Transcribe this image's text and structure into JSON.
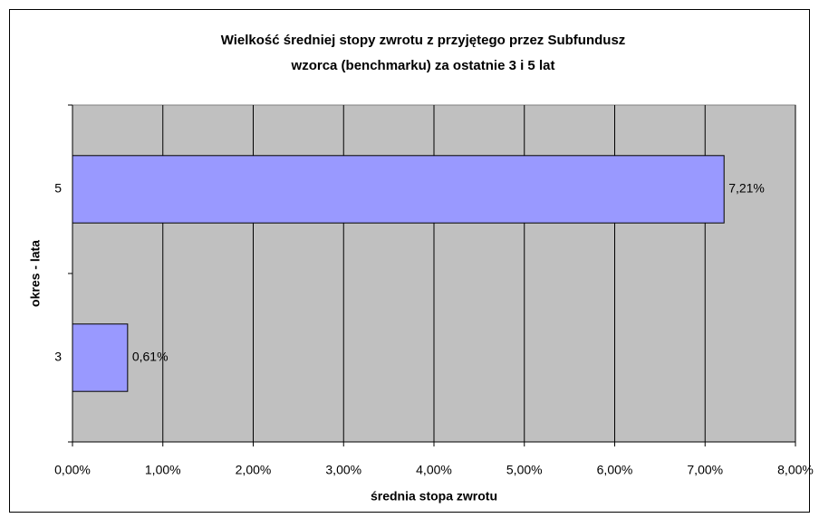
{
  "chart_data": {
    "type": "barh",
    "title": [
      "Wielkość średniej stopy zwrotu z przyjętego przez Subfundusz",
      "wzorca (benchmarku) za ostatnie 3 i 5 lat"
    ],
    "x_label": "średnia stopa zwrotu",
    "y_label": "okres - lata",
    "categories": [
      "3",
      "5"
    ],
    "values": [
      0.61,
      7.21
    ],
    "value_labels": [
      "0,61%",
      "7,21%"
    ],
    "color": "#9999ff",
    "xlim": [
      0,
      8
    ],
    "xticks": [
      {
        "value": 0,
        "label": "0,00%"
      },
      {
        "value": 1,
        "label": "1,00%"
      },
      {
        "value": 2,
        "label": "2,00%"
      },
      {
        "value": 3,
        "label": "3,00%"
      },
      {
        "value": 4,
        "label": "4,00%"
      },
      {
        "value": 5,
        "label": "5,00%"
      },
      {
        "value": 6,
        "label": "6,00%"
      },
      {
        "value": 7,
        "label": "7,00%"
      },
      {
        "value": 8,
        "label": "8,00%"
      }
    ],
    "grid": true
  }
}
